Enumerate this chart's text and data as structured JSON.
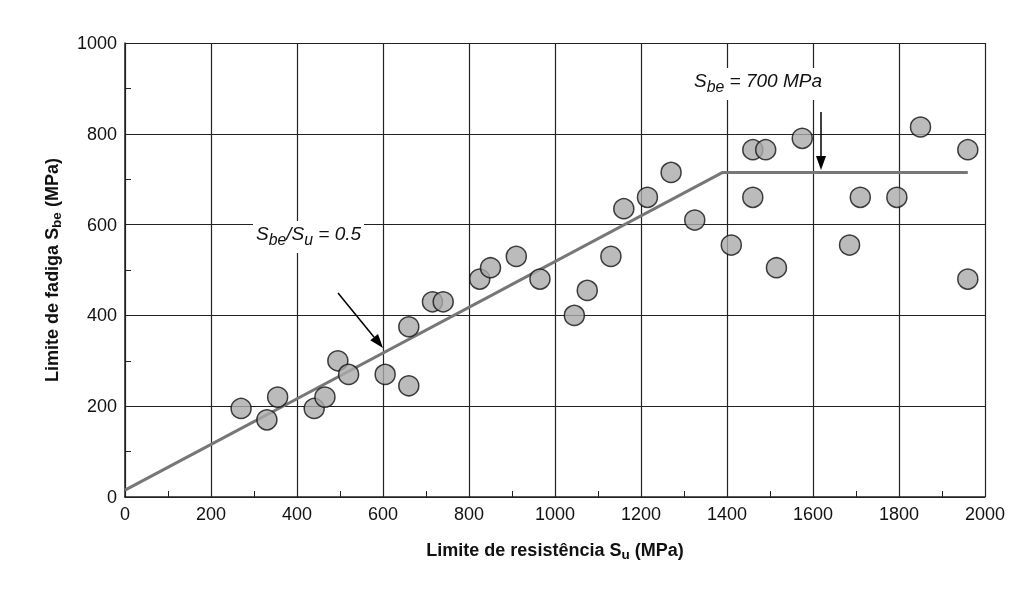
{
  "chart_data": {
    "type": "scatter",
    "xlabel": "Limite de resistência S$_{u}$ (MPa)",
    "ylabel": "Limite de fadiga S$_{be}$ (MPa)",
    "series": [
      {
        "color": "#aaaaaa",
        "marker": "circle",
        "x": [
          270,
          330,
          355,
          440,
          465,
          495,
          520,
          605,
          660,
          660,
          715,
          740,
          825,
          850,
          910,
          965,
          1045,
          1075,
          1130,
          1160,
          1215,
          1270,
          1325,
          1410,
          1460,
          1460,
          1490,
          1575,
          1515,
          1685,
          1710,
          1795,
          1850,
          1960,
          1960
        ],
        "values": [
          195,
          170,
          220,
          195,
          220,
          300,
          270,
          270,
          245,
          375,
          430,
          430,
          480,
          505,
          530,
          480,
          400,
          455,
          530,
          635,
          660,
          715,
          610,
          555,
          765,
          660,
          765,
          790,
          505,
          555,
          660,
          660,
          815,
          765,
          480
        ]
      },
      {
        "type": "line",
        "color": "#777777",
        "marker": "none",
        "line_style": "solid",
        "x": [
          0,
          1390,
          1960
        ],
        "values": [
          15,
          715,
          715
        ]
      }
    ],
    "xlim": [
      0,
      2000
    ],
    "xticks": [
      0,
      {
        "value": 100,
        "label": null
      },
      200,
      {
        "value": 300,
        "label": null
      },
      400,
      {
        "value": 500,
        "label": null
      },
      600,
      {
        "value": 700,
        "label": null
      },
      800,
      {
        "value": 900,
        "label": null
      },
      1000,
      {
        "value": 1100,
        "label": null
      },
      1200,
      {
        "value": 1300,
        "label": null
      },
      1400,
      {
        "value": 1500,
        "label": null
      },
      1600,
      {
        "value": 1700,
        "label": null
      },
      1800,
      {
        "value": 1900,
        "label": null
      },
      2000
    ],
    "ylim": [
      0,
      1000
    ],
    "yticks": [
      0,
      {
        "value": 100,
        "label": null
      },
      200,
      {
        "value": 300,
        "label": null
      },
      400,
      {
        "value": 500,
        "label": null
      },
      600,
      {
        "value": 700,
        "label": null
      },
      800,
      {
        "value": 900,
        "label": null
      },
      1000
    ],
    "grid": true,
    "annotations": [
      "S$_{be}$/S$_{u}$ = 0.5",
      "S$_{be}$ = 700 MPa"
    ]
  }
}
